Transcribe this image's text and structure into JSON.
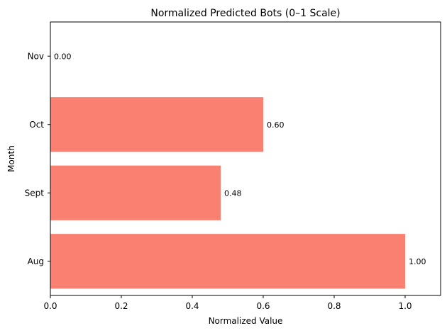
{
  "chart_data": {
    "type": "bar",
    "orientation": "horizontal",
    "title": "Normalized Predicted Bots (0–1 Scale)",
    "xlabel": "Normalized Value",
    "ylabel": "Month",
    "categories": [
      "Aug",
      "Sept",
      "Oct",
      "Nov"
    ],
    "values": [
      1.0,
      0.48,
      0.6,
      0.0
    ],
    "value_labels": [
      "1.00",
      "0.48",
      "0.60",
      "0.00"
    ],
    "xlim": [
      0,
      1.1
    ],
    "xticks": [
      0.0,
      0.2,
      0.4,
      0.6,
      0.8,
      1.0
    ],
    "xtick_labels": [
      "0.0",
      "0.2",
      "0.4",
      "0.6",
      "0.8",
      "1.0"
    ],
    "bar_color": "#fa8072",
    "grid": false,
    "legend": "none"
  }
}
